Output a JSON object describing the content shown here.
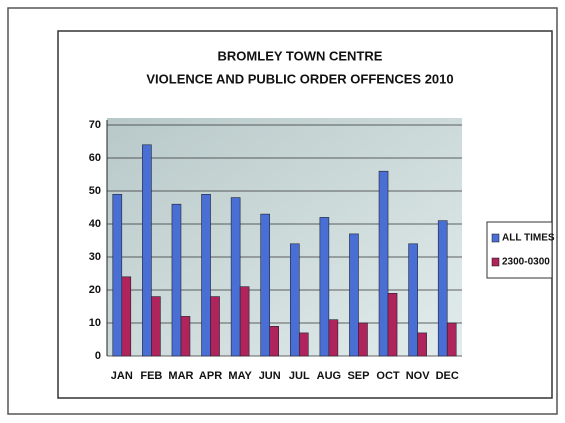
{
  "chart_data": {
    "type": "bar",
    "title": "BROMLEY TOWN CENTRE",
    "subtitle": "VIOLENCE AND PUBLIC ORDER OFFENCES 2010",
    "categories": [
      "JAN",
      "FEB",
      "MAR",
      "APR",
      "MAY",
      "JUN",
      "JUL",
      "AUG",
      "SEP",
      "OCT",
      "NOV",
      "DEC"
    ],
    "series": [
      {
        "name": "ALL TIMES",
        "color": "#4a6fd4",
        "values": [
          49,
          64,
          46,
          49,
          48,
          43,
          34,
          42,
          37,
          56,
          34,
          41
        ]
      },
      {
        "name": "2300-0300",
        "color": "#b0245c",
        "values": [
          24,
          18,
          12,
          18,
          21,
          9,
          7,
          11,
          10,
          19,
          7,
          10
        ]
      }
    ],
    "ylim": [
      0,
      70
    ],
    "yticks": [
      0,
      10,
      20,
      30,
      40,
      50,
      60,
      70
    ],
    "grid": true,
    "legend": "right"
  }
}
